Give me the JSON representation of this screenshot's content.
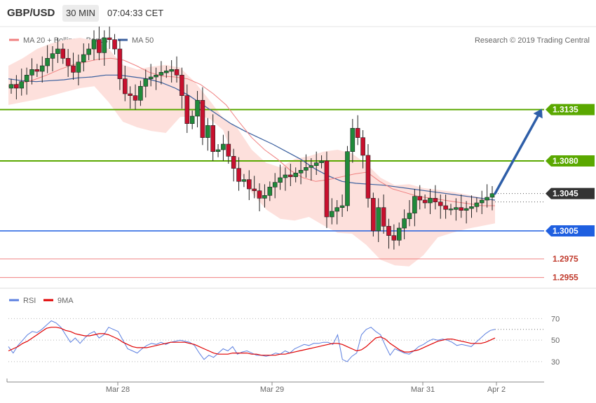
{
  "header": {
    "symbol": "GBP/USD",
    "timeframe": "30 MIN",
    "time": "07:04:33 CET"
  },
  "legend": {
    "ma20": "MA 20 + Bollinger Bands",
    "ma50": "MA 50",
    "ma20_color": "#f08080",
    "ma50_color": "#3a5f9e"
  },
  "copyright": "Research © 2019 Trading Central",
  "chart_data": [
    {
      "type": "candlestick",
      "title": "",
      "y_range": [
        1.2945,
        1.3215
      ],
      "current_price": "1.3045",
      "levels": [
        {
          "label": "1.3135",
          "value": 1.3135,
          "color": "#5aa800",
          "style": "resistance"
        },
        {
          "label": "1.3080",
          "value": 1.308,
          "color": "#5aa800",
          "style": "resistance"
        },
        {
          "label": "1.3045",
          "value": 1.3045,
          "color": "#333333",
          "style": "current"
        },
        {
          "label": "1.3005",
          "value": 1.3005,
          "color": "#1f5fe0",
          "style": "support"
        },
        {
          "label": "1.2975",
          "value": 1.2975,
          "color": "#f08080",
          "style": "support-minor"
        },
        {
          "label": "1.2955",
          "value": 1.2955,
          "color": "#f08080",
          "style": "support-minor"
        }
      ],
      "close_path": [
        1.3162,
        1.3158,
        1.3165,
        1.3172,
        1.3178,
        1.3176,
        1.3182,
        1.319,
        1.3195,
        1.32,
        1.319,
        1.3182,
        1.3175,
        1.3186,
        1.3194,
        1.32,
        1.321,
        1.3196,
        1.3212,
        1.321,
        1.32,
        1.3168,
        1.3152,
        1.315,
        1.3145,
        1.316,
        1.3168,
        1.317,
        1.3172,
        1.3175,
        1.3176,
        1.3178,
        1.3172,
        1.315,
        1.312,
        1.3128,
        1.3145,
        1.3105,
        1.3118,
        1.309,
        1.3092,
        1.3098,
        1.3085,
        1.3072,
        1.3058,
        1.306,
        1.305,
        1.3048,
        1.304,
        1.3043,
        1.3052,
        1.3057,
        1.3062,
        1.3065,
        1.3063,
        1.3067,
        1.307,
        1.3073,
        1.3075,
        1.3078,
        1.308,
        1.302,
        1.3026,
        1.303,
        1.3032,
        1.309,
        1.3115,
        1.3105,
        1.3086,
        1.304,
        1.3005,
        1.303,
        1.301,
        1.3,
        1.2995,
        1.3008,
        1.3018,
        1.3024,
        1.3042,
        1.3038,
        1.3035,
        1.304,
        1.3036,
        1.3032,
        1.3028,
        1.3028,
        1.303,
        1.3027,
        1.3029,
        1.3031,
        1.3035,
        1.3038,
        1.3041,
        1.3045
      ],
      "ma20": [
        1.316,
        1.3163,
        1.3167,
        1.3172,
        1.3178,
        1.3183,
        1.3186,
        1.3189,
        1.319,
        1.3188,
        1.3182,
        1.3175,
        1.3171,
        1.317,
        1.3168,
        1.3162,
        1.3152,
        1.314,
        1.3122,
        1.3105,
        1.3092,
        1.3082,
        1.307,
        1.3062,
        1.3058,
        1.306,
        1.3063,
        1.3066,
        1.3068,
        1.3058,
        1.305,
        1.3046,
        1.3042,
        1.304,
        1.3038,
        1.3036,
        1.3034,
        1.3032,
        1.3032
      ],
      "ma50": [
        1.3168,
        1.3166,
        1.3165,
        1.3166,
        1.3167,
        1.3169,
        1.317,
        1.3172,
        1.3172,
        1.317,
        1.3168,
        1.3164,
        1.3158,
        1.315,
        1.314,
        1.313,
        1.312,
        1.3112,
        1.3105,
        1.3098,
        1.309,
        1.3082,
        1.3072,
        1.3064,
        1.3058,
        1.3056,
        1.3055,
        1.3054,
        1.3052,
        1.305,
        1.3048,
        1.3046,
        1.3044,
        1.3042,
        1.304,
        1.3038
      ],
      "bollinger_upper": [
        1.3182,
        1.319,
        1.32,
        1.3206,
        1.321,
        1.3212,
        1.3209,
        1.32,
        1.3183,
        1.3178,
        1.3181,
        1.3183,
        1.318,
        1.3165,
        1.3146,
        1.3126,
        1.3115,
        1.3092,
        1.3078,
        1.3073,
        1.3082,
        1.3085,
        1.309,
        1.3092,
        1.3088,
        1.3077,
        1.3062,
        1.3054,
        1.3055,
        1.3051,
        1.3049,
        1.3047,
        1.3044,
        1.3041,
        1.3038
      ],
      "bollinger_lower": [
        1.314,
        1.3143,
        1.3146,
        1.315,
        1.3154,
        1.3158,
        1.316,
        1.3143,
        1.3122,
        1.3116,
        1.3112,
        1.311,
        1.3127,
        1.3128,
        1.3126,
        1.3113,
        1.3072,
        1.3046,
        1.3028,
        1.3018,
        1.3016,
        1.302,
        1.3011,
        1.3003,
        1.3002,
        1.299,
        1.2974,
        1.2968,
        1.2967,
        1.2979,
        1.2998,
        1.3003,
        1.3007,
        1.301,
        1.3013
      ],
      "projection": {
        "from": 1.3045,
        "to": 1.3135
      }
    },
    {
      "type": "line",
      "title": "",
      "series": [
        {
          "name": "RSI",
          "color": "#5b7fe0",
          "values": [
            44,
            38,
            45,
            50,
            55,
            58,
            57,
            60,
            64,
            68,
            66,
            62,
            55,
            48,
            52,
            47,
            52,
            56,
            58,
            52,
            55,
            62,
            60,
            58,
            50,
            42,
            40,
            38,
            42,
            45,
            47,
            46,
            48,
            46,
            48,
            49,
            50,
            49,
            48,
            45,
            38,
            32,
            36,
            34,
            38,
            42,
            40,
            44,
            37,
            39,
            40,
            38,
            36,
            36,
            35,
            36,
            38,
            37,
            40,
            38,
            42,
            44,
            46,
            45,
            47,
            47,
            48,
            48,
            46,
            55,
            32,
            30,
            35,
            38,
            55,
            60,
            62,
            58,
            55,
            45,
            36,
            42,
            40,
            38,
            37,
            40,
            44,
            46,
            49,
            51,
            50,
            51,
            50,
            48,
            45,
            46,
            45,
            44,
            48,
            52,
            56,
            59,
            60
          ]
        },
        {
          "name": "9MA",
          "color": "#e00000",
          "values": [
            40,
            42,
            44,
            47,
            49,
            52,
            55,
            58,
            61,
            62,
            62,
            61,
            59,
            58,
            56,
            55,
            54,
            54,
            55,
            56,
            56,
            55,
            53,
            51,
            48,
            46,
            44,
            43,
            43,
            43,
            44,
            45,
            46,
            47,
            48,
            48,
            48,
            48,
            47,
            46,
            44,
            42,
            40,
            38,
            37,
            37,
            37,
            38,
            38,
            38,
            38,
            37,
            37,
            36,
            36,
            36,
            36,
            37,
            37,
            38,
            39,
            40,
            41,
            42,
            43,
            44,
            45,
            46,
            47,
            47,
            46,
            44,
            42,
            40,
            41,
            44,
            48,
            52,
            53,
            51,
            47,
            44,
            41,
            39,
            39,
            40,
            41,
            43,
            45,
            47,
            49,
            50,
            51,
            51,
            50,
            49,
            48,
            47,
            47,
            47,
            48,
            50,
            52
          ]
        }
      ],
      "y_ticks": [
        "70",
        "50",
        "30"
      ],
      "x_ticks": [
        "Mar 28",
        "Mar 29",
        "Mar 31",
        "Apr 2"
      ]
    }
  ]
}
